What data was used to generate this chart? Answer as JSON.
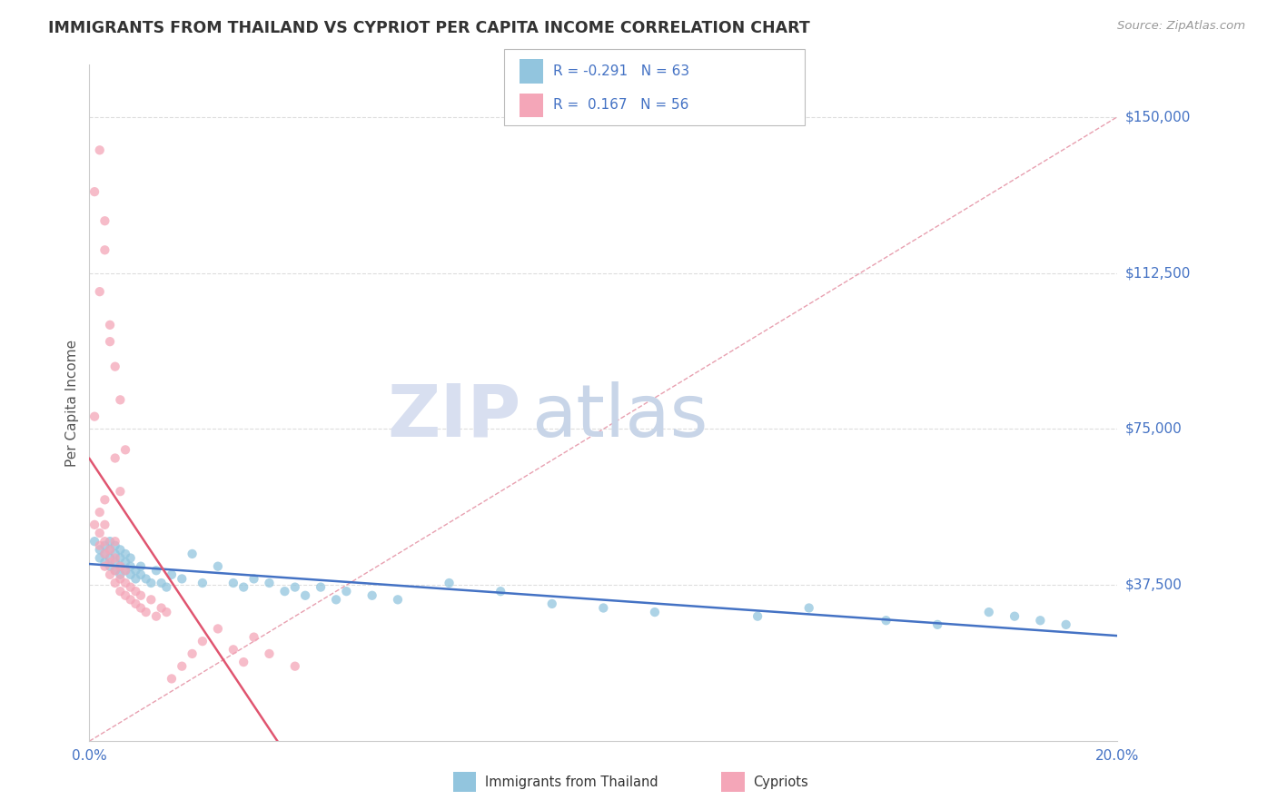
{
  "title": "IMMIGRANTS FROM THAILAND VS CYPRIOT PER CAPITA INCOME CORRELATION CHART",
  "source": "Source: ZipAtlas.com",
  "xlabel_label": "Immigrants from Thailand",
  "ylabel_label": "Per Capita Income",
  "legend_label1": "Immigrants from Thailand",
  "legend_label2": "Cypriots",
  "R1": -0.291,
  "N1": 63,
  "R2": 0.167,
  "N2": 56,
  "xlim": [
    0.0,
    0.2
  ],
  "ylim": [
    0,
    162500
  ],
  "yticks": [
    0,
    37500,
    75000,
    112500,
    150000
  ],
  "ytick_labels": [
    "",
    "$37,500",
    "$75,000",
    "$112,500",
    "$150,000"
  ],
  "xticks": [
    0.0,
    0.05,
    0.1,
    0.15,
    0.2
  ],
  "xtick_labels": [
    "0.0%",
    "",
    "",
    "",
    "20.0%"
  ],
  "color_blue": "#92c5de",
  "color_pink": "#f4a6b8",
  "line_blue": "#4472c4",
  "line_pink": "#e05570",
  "diag_line_color": "#e8a0b0",
  "watermark_ZIP_color": "#d8dff0",
  "watermark_atlas_color": "#c8d5e8",
  "grid_color": "#dddddd",
  "title_color": "#333333",
  "axis_color": "#4472c4",
  "scatter_alpha": 0.75,
  "blue_scatter_x": [
    0.001,
    0.002,
    0.002,
    0.003,
    0.003,
    0.003,
    0.004,
    0.004,
    0.004,
    0.004,
    0.005,
    0.005,
    0.005,
    0.005,
    0.006,
    0.006,
    0.006,
    0.006,
    0.007,
    0.007,
    0.007,
    0.008,
    0.008,
    0.008,
    0.009,
    0.009,
    0.01,
    0.01,
    0.011,
    0.012,
    0.013,
    0.014,
    0.015,
    0.016,
    0.018,
    0.02,
    0.022,
    0.025,
    0.028,
    0.03,
    0.032,
    0.035,
    0.038,
    0.04,
    0.042,
    0.045,
    0.048,
    0.05,
    0.055,
    0.06,
    0.07,
    0.08,
    0.09,
    0.1,
    0.11,
    0.13,
    0.14,
    0.155,
    0.165,
    0.175,
    0.18,
    0.185,
    0.19
  ],
  "blue_scatter_y": [
    48000,
    46000,
    44000,
    43000,
    45000,
    47000,
    42000,
    44000,
    46000,
    48000,
    41000,
    43000,
    45000,
    47000,
    40000,
    42000,
    44000,
    46000,
    41000,
    43000,
    45000,
    40000,
    42000,
    44000,
    39000,
    41000,
    40000,
    42000,
    39000,
    38000,
    41000,
    38000,
    37000,
    40000,
    39000,
    45000,
    38000,
    42000,
    38000,
    37000,
    39000,
    38000,
    36000,
    37000,
    35000,
    37000,
    34000,
    36000,
    35000,
    34000,
    38000,
    36000,
    33000,
    32000,
    31000,
    30000,
    32000,
    29000,
    28000,
    31000,
    30000,
    29000,
    28000
  ],
  "pink_scatter_x": [
    0.001,
    0.001,
    0.002,
    0.002,
    0.002,
    0.003,
    0.003,
    0.003,
    0.003,
    0.003,
    0.004,
    0.004,
    0.004,
    0.005,
    0.005,
    0.005,
    0.005,
    0.006,
    0.006,
    0.006,
    0.007,
    0.007,
    0.007,
    0.008,
    0.008,
    0.009,
    0.009,
    0.01,
    0.01,
    0.011,
    0.012,
    0.013,
    0.014,
    0.015,
    0.016,
    0.018,
    0.02,
    0.022,
    0.025,
    0.028,
    0.03,
    0.032,
    0.035,
    0.04,
    0.005,
    0.006,
    0.007,
    0.003,
    0.004,
    0.005,
    0.002,
    0.003,
    0.004,
    0.001,
    0.002,
    0.006
  ],
  "pink_scatter_y": [
    52000,
    78000,
    47000,
    50000,
    55000,
    42000,
    45000,
    48000,
    52000,
    58000,
    40000,
    43000,
    46000,
    38000,
    41000,
    44000,
    48000,
    36000,
    39000,
    42000,
    35000,
    38000,
    41000,
    34000,
    37000,
    33000,
    36000,
    32000,
    35000,
    31000,
    34000,
    30000,
    32000,
    31000,
    15000,
    18000,
    21000,
    24000,
    27000,
    22000,
    19000,
    25000,
    21000,
    18000,
    90000,
    82000,
    70000,
    125000,
    100000,
    68000,
    108000,
    118000,
    96000,
    132000,
    142000,
    60000
  ]
}
